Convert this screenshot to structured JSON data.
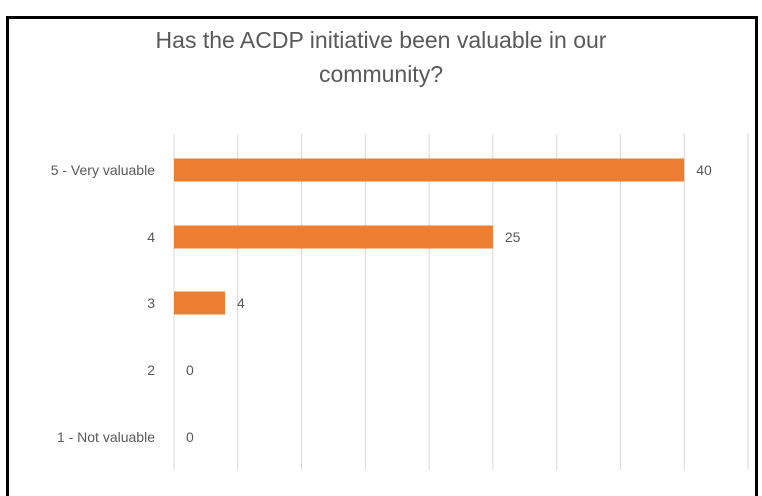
{
  "chart_data": {
    "type": "bar",
    "orientation": "horizontal",
    "title": "Has the ACDP initiative been valuable in our community?",
    "title_lines": [
      "Has the ACDP initiative been valuable in our",
      "community?"
    ],
    "categories": [
      "5 - Very valuable",
      "4",
      "3",
      "2",
      "1 - Not valuable"
    ],
    "values": [
      40,
      25,
      4,
      0,
      0
    ],
    "xlim": [
      0,
      45
    ],
    "grid": true,
    "legend": "none",
    "bar_color": "#ED7D31"
  }
}
